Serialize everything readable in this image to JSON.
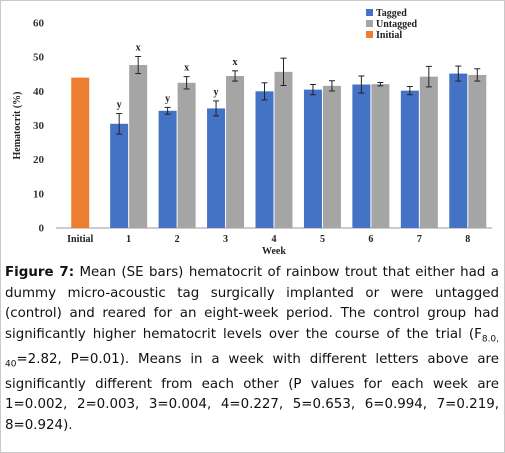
{
  "chart_data": {
    "type": "bar",
    "xlabel": "Week",
    "ylabel": "Hematocrit (%)",
    "ylim": [
      0,
      60
    ],
    "yticks": [
      0,
      10,
      20,
      30,
      40,
      50,
      60
    ],
    "categories": [
      "Initial",
      "1",
      "2",
      "3",
      "4",
      "5",
      "6",
      "7",
      "8"
    ],
    "legend_position": "top-right",
    "series": [
      {
        "name": "Tagged",
        "color": "#4472c4",
        "values": [
          null,
          30.5,
          34.3,
          35.0,
          40.0,
          40.5,
          42.0,
          40.2,
          45.2
        ],
        "se": [
          null,
          3.0,
          1.0,
          2.2,
          2.5,
          1.5,
          2.5,
          1.2,
          2.2
        ],
        "letters": [
          null,
          "y",
          "y",
          "y",
          null,
          null,
          null,
          null,
          null
        ]
      },
      {
        "name": "Untagged",
        "color": "#a5a5a5",
        "values": [
          null,
          47.7,
          42.5,
          44.5,
          45.7,
          41.6,
          42.1,
          44.3,
          44.8
        ],
        "se": [
          null,
          2.5,
          1.8,
          1.5,
          4.0,
          1.5,
          0.5,
          3.0,
          1.8
        ],
        "letters": [
          null,
          "x",
          "x",
          "x",
          null,
          null,
          null,
          null,
          null
        ]
      },
      {
        "name": "Initial",
        "color": "#ed7d31",
        "values": [
          44.0,
          null,
          null,
          null,
          null,
          null,
          null,
          null,
          null
        ],
        "se": [
          null,
          null,
          null,
          null,
          null,
          null,
          null,
          null,
          null
        ],
        "letters": [
          null,
          null,
          null,
          null,
          null,
          null,
          null,
          null,
          null
        ]
      }
    ]
  },
  "caption": {
    "label": "Figure 7:",
    "text_part1": " Mean (SE bars) hematocrit of rainbow trout that either had a dummy micro-acoustic tag surgically implanted or were untagged (control) and reared for an eight-week period. The control group had significantly higher hematocrit levels over the course of the trial (F",
    "sub": "8.0, 40",
    "text_part2": "=2.82, P=0.01). Means in a week with different letters above are significantly different from each other (P values for each week are 1=0.002, 2=0.003, 3=0.004, 4=0.227, 5=0.653, 6=0.994, 7=0.219, 8=0.924)."
  }
}
